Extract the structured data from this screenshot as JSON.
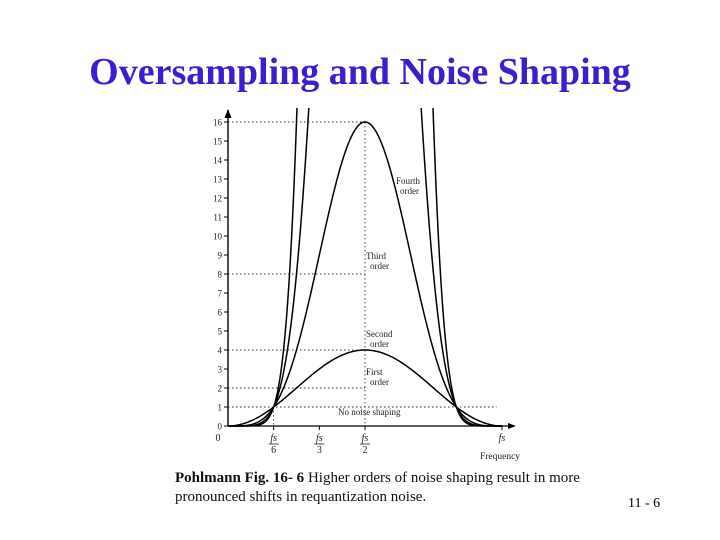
{
  "slide": {
    "title": "Oversampling and Noise Shaping",
    "caption_bold": "Pohlmann Fig. 16- 6",
    "caption_rest": " Higher orders of noise shaping result in more pronounced shifts in requantization noise.",
    "page_number": "11 - 6",
    "title_color": "#3a1fd0"
  },
  "chart_data": {
    "type": "line",
    "xlabel": "Frequency",
    "ylabel": "",
    "ylim": [
      0,
      16
    ],
    "y_ticks": [
      0,
      1,
      2,
      3,
      4,
      5,
      6,
      7,
      8,
      9,
      10,
      11,
      12,
      13,
      14,
      15,
      16
    ],
    "x_ticks": [
      {
        "num": "0",
        "den": "",
        "value": 0
      },
      {
        "num": "fs",
        "den": "6",
        "value": 0.1667
      },
      {
        "num": "fs",
        "den": "3",
        "value": 0.3333
      },
      {
        "num": "fs",
        "den": "2",
        "value": 0.5
      },
      {
        "num": "fs",
        "den": "",
        "value": 1
      }
    ],
    "series": [
      {
        "name": "No noise shaping",
        "order": 0,
        "peak": 1
      },
      {
        "name": "First order",
        "order": 1,
        "peak": 2
      },
      {
        "name": "Second order",
        "order": 2,
        "peak": 4
      },
      {
        "name": "Third order",
        "order": 3,
        "peak": 8
      },
      {
        "name": "Fourth order",
        "order": 4,
        "peak": 16
      }
    ],
    "series_labels": [
      {
        "line1": "Fourth",
        "line2": "order"
      },
      {
        "line1": "Third",
        "line2": "order"
      },
      {
        "line1": "Second",
        "line2": "order"
      },
      {
        "line1": "First",
        "line2": "order"
      },
      {
        "line1": "No noise shaping",
        "line2": ""
      }
    ],
    "grid": false,
    "guides": "dotted lines at peaks and fs/6"
  }
}
